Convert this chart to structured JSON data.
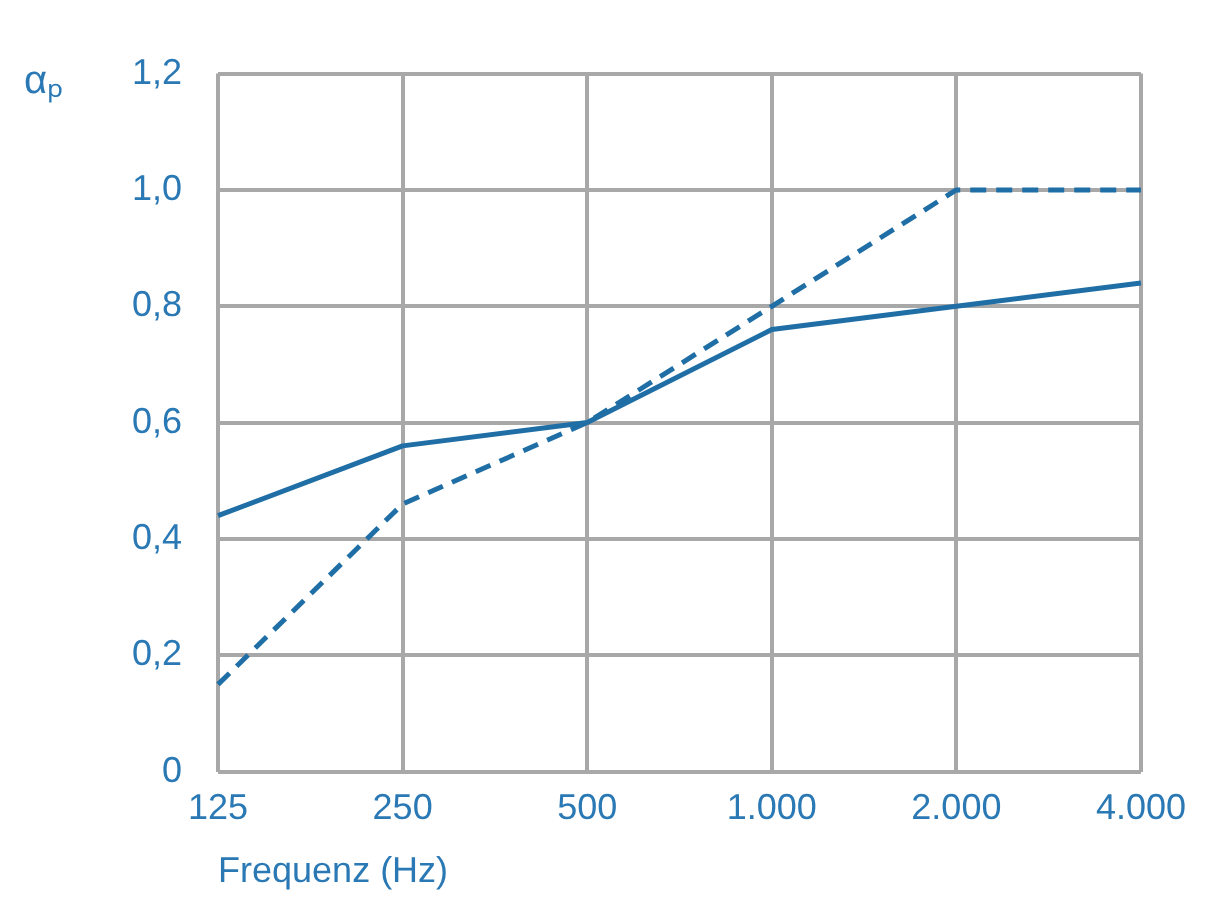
{
  "chart_data": {
    "type": "line",
    "xlabel": "Frequenz (Hz)",
    "ylabel": "αₚ",
    "categories": [
      "125",
      "250",
      "500",
      "1.000",
      "2.000",
      "4.000"
    ],
    "series": [
      {
        "color": "#1f6ea5",
        "line_style": "solid",
        "values": [
          0.44,
          0.56,
          0.6,
          0.76,
          0.8,
          0.84
        ]
      },
      {
        "color": "#1f6ea5",
        "line_style": "dashed",
        "values": [
          0.15,
          0.46,
          0.6,
          0.8,
          1.0,
          1.0
        ]
      }
    ],
    "ylim": [
      0,
      1.2
    ],
    "yticks": [
      0,
      {
        "value": 0.2,
        "label": "0,2"
      },
      {
        "value": 0.4,
        "label": "0,4"
      },
      {
        "value": 0.6,
        "label": "0,6"
      },
      {
        "value": 0.8,
        "label": "0,8"
      },
      {
        "value": 1.0,
        "label": "1,0"
      },
      {
        "value": 1.2,
        "label": "1,2"
      }
    ],
    "grid": true,
    "marker": "none",
    "legend": false
  }
}
